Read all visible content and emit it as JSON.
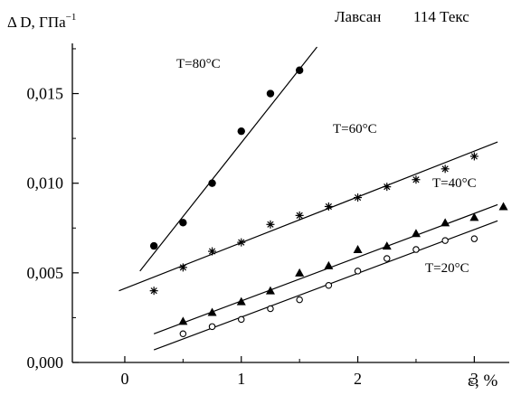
{
  "header": {
    "y_label": "Δ D, ГПа",
    "y_label_sup": "−1",
    "material": "Лавсан",
    "linear_density": "114 Текс"
  },
  "chart_data": {
    "type": "scatter",
    "xlabel": "ε, %",
    "ylabel": "Δ D, ГПа−1",
    "xlim": [
      -0.45,
      3.3
    ],
    "ylim": [
      0.0,
      0.0178
    ],
    "x_ticks": [
      0,
      1,
      2,
      3
    ],
    "x_tick_labels": [
      "0",
      "1",
      "2",
      "3"
    ],
    "y_ticks": [
      0.0,
      0.005,
      0.01,
      0.015
    ],
    "y_tick_labels": [
      "0,000",
      "0,005",
      "0,010",
      "0,015"
    ],
    "grid": false,
    "series": [
      {
        "name": "T=80°C",
        "marker": "filled-circle",
        "points": [
          [
            0.25,
            0.0065
          ],
          [
            0.5,
            0.0078
          ],
          [
            0.75,
            0.01
          ],
          [
            1.0,
            0.0129
          ],
          [
            1.25,
            0.015
          ],
          [
            1.5,
            0.0163
          ]
        ],
        "fit_line": [
          [
            0.13,
            0.0051
          ],
          [
            1.65,
            0.0176
          ]
        ]
      },
      {
        "name": "T=60°C",
        "marker": "asterisk",
        "points": [
          [
            0.25,
            0.004
          ],
          [
            0.5,
            0.0053
          ],
          [
            0.75,
            0.0062
          ],
          [
            1.0,
            0.0067
          ],
          [
            1.25,
            0.0077
          ],
          [
            1.5,
            0.0082
          ],
          [
            1.75,
            0.0087
          ],
          [
            2.0,
            0.0092
          ],
          [
            2.25,
            0.0098
          ],
          [
            2.5,
            0.0102
          ],
          [
            2.75,
            0.0108
          ],
          [
            3.0,
            0.0115
          ]
        ],
        "fit_line": [
          [
            -0.05,
            0.004
          ],
          [
            3.2,
            0.0123
          ]
        ]
      },
      {
        "name": "T=40°C",
        "marker": "filled-triangle",
        "points": [
          [
            0.5,
            0.0023
          ],
          [
            0.75,
            0.0028
          ],
          [
            1.0,
            0.0034
          ],
          [
            1.25,
            0.004
          ],
          [
            1.5,
            0.005
          ],
          [
            1.75,
            0.0054
          ],
          [
            2.0,
            0.0063
          ],
          [
            2.25,
            0.0065
          ],
          [
            2.5,
            0.0072
          ],
          [
            2.75,
            0.0078
          ],
          [
            3.0,
            0.0081
          ],
          [
            3.25,
            0.0087
          ]
        ],
        "fit_line": [
          [
            0.25,
            0.0016
          ],
          [
            3.2,
            0.0088
          ]
        ]
      },
      {
        "name": "T=20°C",
        "marker": "open-circle",
        "points": [
          [
            0.5,
            0.0016
          ],
          [
            0.75,
            0.002
          ],
          [
            1.0,
            0.0024
          ],
          [
            1.25,
            0.003
          ],
          [
            1.5,
            0.0035
          ],
          [
            1.75,
            0.0043
          ],
          [
            2.0,
            0.0051
          ],
          [
            2.25,
            0.0058
          ],
          [
            2.5,
            0.0063
          ],
          [
            2.75,
            0.0068
          ],
          [
            3.0,
            0.0069
          ]
        ],
        "fit_line": [
          [
            0.25,
            0.0007
          ],
          [
            3.2,
            0.0079
          ]
        ]
      }
    ],
    "annotations": [
      "T=80°C",
      "T=60°C",
      "T=40°C",
      "T=20°C"
    ]
  }
}
